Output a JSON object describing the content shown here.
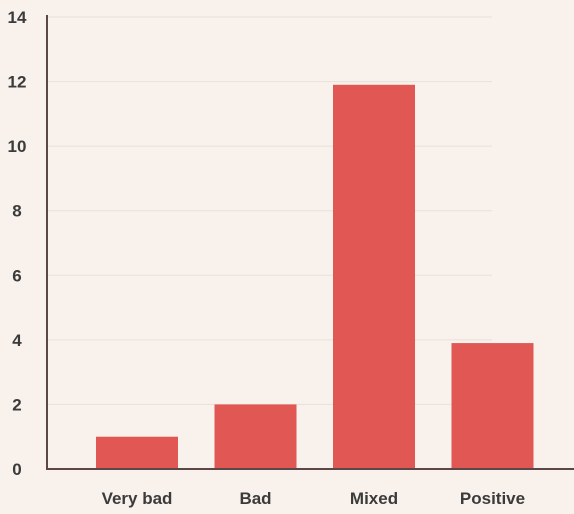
{
  "colors": {
    "background": "#f9f2ec",
    "bar": "#e05753",
    "axis": "#5b4747",
    "grid": "#e8e0da",
    "text": "#3b3b3b"
  },
  "chart_data": {
    "type": "bar",
    "title": "",
    "xlabel": "",
    "ylabel": "",
    "categories": [
      "Very bad",
      "Bad",
      "Mixed",
      "Positive"
    ],
    "values": [
      1,
      2,
      11.9,
      3.9
    ],
    "ylim": [
      0,
      14
    ],
    "yticks": [
      0,
      2,
      4,
      6,
      8,
      10,
      12,
      14
    ],
    "grid": true,
    "legend": "none"
  }
}
